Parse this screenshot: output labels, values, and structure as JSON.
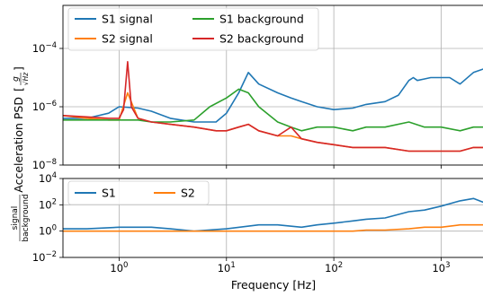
{
  "chart_data": [
    {
      "type": "line",
      "panel": "psd",
      "ylabel": "Acceleration PSD",
      "ylabel_unit": "[g/√Hz]",
      "ylabel_unit_numerator": "g",
      "ylabel_unit_denominator": "√Hz",
      "x_scale": "log",
      "y_scale": "log",
      "xlim": [
        0.3,
        2500
      ],
      "ylim": [
        1e-08,
        0.003
      ],
      "yticks": [
        1e-08,
        1e-06,
        0.0001
      ],
      "ytick_labels": [
        {
          "base": "10",
          "exp": "−8"
        },
        {
          "base": "10",
          "exp": "−6"
        },
        {
          "base": "10",
          "exp": "−4"
        }
      ],
      "grid": true,
      "legend_placement": "top-left",
      "legend_columns": 2,
      "series": [
        {
          "name": "S1 signal",
          "color": "#1f77b4",
          "x": [
            0.3,
            0.5,
            0.8,
            1,
            1.5,
            2,
            3,
            5,
            8,
            10,
            13,
            16,
            20,
            30,
            40,
            50,
            70,
            100,
            150,
            200,
            300,
            400,
            500,
            550,
            600,
            700,
            800,
            1000,
            1200,
            1500,
            2000,
            2500
          ],
          "y": [
            4e-07,
            4e-07,
            6e-07,
            1e-06,
            9e-07,
            7e-07,
            4e-07,
            3e-07,
            3e-07,
            6e-07,
            3e-06,
            1.5e-05,
            6e-06,
            3e-06,
            2e-06,
            1.5e-06,
            1e-06,
            8e-07,
            9e-07,
            1.2e-06,
            1.5e-06,
            2.5e-06,
            8e-06,
            1e-05,
            8e-06,
            9e-06,
            1e-05,
            1e-05,
            1e-05,
            6e-06,
            1.5e-05,
            2e-05
          ]
        },
        {
          "name": "S2 signal",
          "color": "#ff7f0e",
          "x": [
            0.3,
            0.5,
            0.8,
            1,
            1.2,
            1.5,
            2,
            3,
            5,
            8,
            10,
            13,
            16,
            20,
            30,
            40,
            50,
            70,
            100,
            150,
            200,
            300,
            500,
            700,
            1000,
            1500,
            2000,
            2500
          ],
          "y": [
            5e-07,
            4e-07,
            3.5e-07,
            3.5e-07,
            3e-06,
            4e-07,
            3e-07,
            2.5e-07,
            2e-07,
            1.5e-07,
            1.5e-07,
            2e-07,
            2.5e-07,
            1.5e-07,
            1e-07,
            1e-07,
            8e-08,
            6e-08,
            5e-08,
            4e-08,
            4e-08,
            4e-08,
            3e-08,
            3e-08,
            3e-08,
            3e-08,
            4e-08,
            4e-08
          ]
        },
        {
          "name": "S1 background",
          "color": "#2ca02c",
          "x": [
            0.3,
            0.5,
            0.8,
            1,
            1.5,
            2,
            3,
            5,
            7,
            10,
            13,
            16,
            20,
            30,
            40,
            50,
            70,
            100,
            150,
            200,
            300,
            500,
            700,
            1000,
            1500,
            2000,
            2500
          ],
          "y": [
            3.5e-07,
            3.5e-07,
            3.5e-07,
            3.5e-07,
            3.5e-07,
            3e-07,
            3e-07,
            3.5e-07,
            1e-06,
            2e-06,
            4e-06,
            3e-06,
            1e-06,
            3e-07,
            2e-07,
            1.5e-07,
            2e-07,
            2e-07,
            1.5e-07,
            2e-07,
            2e-07,
            3e-07,
            2e-07,
            2e-07,
            1.5e-07,
            2e-07,
            2e-07
          ]
        },
        {
          "name": "S2 background",
          "color": "#d62728",
          "x": [
            0.3,
            0.5,
            0.8,
            1,
            1.1,
            1.2,
            1.3,
            1.5,
            2,
            3,
            5,
            8,
            10,
            13,
            16,
            20,
            30,
            40,
            50,
            70,
            100,
            150,
            200,
            300,
            500,
            700,
            1000,
            1500,
            2000,
            2500
          ],
          "y": [
            5e-07,
            4.5e-07,
            4e-07,
            4e-07,
            8e-07,
            3.5e-05,
            1e-06,
            4e-07,
            3e-07,
            2.5e-07,
            2e-07,
            1.5e-07,
            1.5e-07,
            2e-07,
            2.5e-07,
            1.5e-07,
            1e-07,
            2e-07,
            8e-08,
            6e-08,
            5e-08,
            4e-08,
            4e-08,
            4e-08,
            3e-08,
            3e-08,
            3e-08,
            3e-08,
            4e-08,
            4e-08
          ]
        }
      ]
    },
    {
      "type": "line",
      "panel": "ratio",
      "xlabel": "Frequency [Hz]",
      "ylabel_numerator": "signal",
      "ylabel_denominator": "background",
      "x_scale": "log",
      "y_scale": "log",
      "xlim": [
        0.3,
        2500
      ],
      "ylim": [
        0.01,
        10000
      ],
      "xticks": [
        1,
        10,
        100,
        1000
      ],
      "xtick_labels": [
        {
          "base": "10",
          "exp": "0"
        },
        {
          "base": "10",
          "exp": "1"
        },
        {
          "base": "10",
          "exp": "2"
        },
        {
          "base": "10",
          "exp": "3"
        }
      ],
      "yticks": [
        0.01,
        1,
        100,
        10000
      ],
      "ytick_labels": [
        {
          "base": "10",
          "exp": "−2"
        },
        {
          "base": "10",
          "exp": "0"
        },
        {
          "base": "10",
          "exp": "2"
        },
        {
          "base": "10",
          "exp": "4"
        }
      ],
      "grid": true,
      "legend_placement": "top-left",
      "legend_columns": 2,
      "series": [
        {
          "name": "S1",
          "color": "#1f77b4",
          "x": [
            0.3,
            0.5,
            1,
            2,
            3,
            5,
            10,
            20,
            30,
            50,
            70,
            100,
            150,
            200,
            300,
            500,
            700,
            1000,
            1500,
            2000,
            2500
          ],
          "y": [
            1.5,
            1.5,
            2,
            2,
            1.5,
            1,
            1.5,
            3,
            3,
            2,
            3,
            4,
            6,
            8,
            10,
            30,
            40,
            80,
            200,
            300,
            150
          ]
        },
        {
          "name": "S2",
          "color": "#ff7f0e",
          "x": [
            0.3,
            0.5,
            1,
            2,
            3,
            5,
            10,
            20,
            30,
            50,
            70,
            100,
            150,
            200,
            300,
            500,
            700,
            1000,
            1500,
            2000,
            2500
          ],
          "y": [
            1,
            1,
            1,
            1,
            1,
            1,
            1,
            1,
            1,
            1,
            1,
            1,
            1,
            1.2,
            1.2,
            1.5,
            2,
            2,
            3,
            3,
            3
          ]
        }
      ]
    }
  ]
}
